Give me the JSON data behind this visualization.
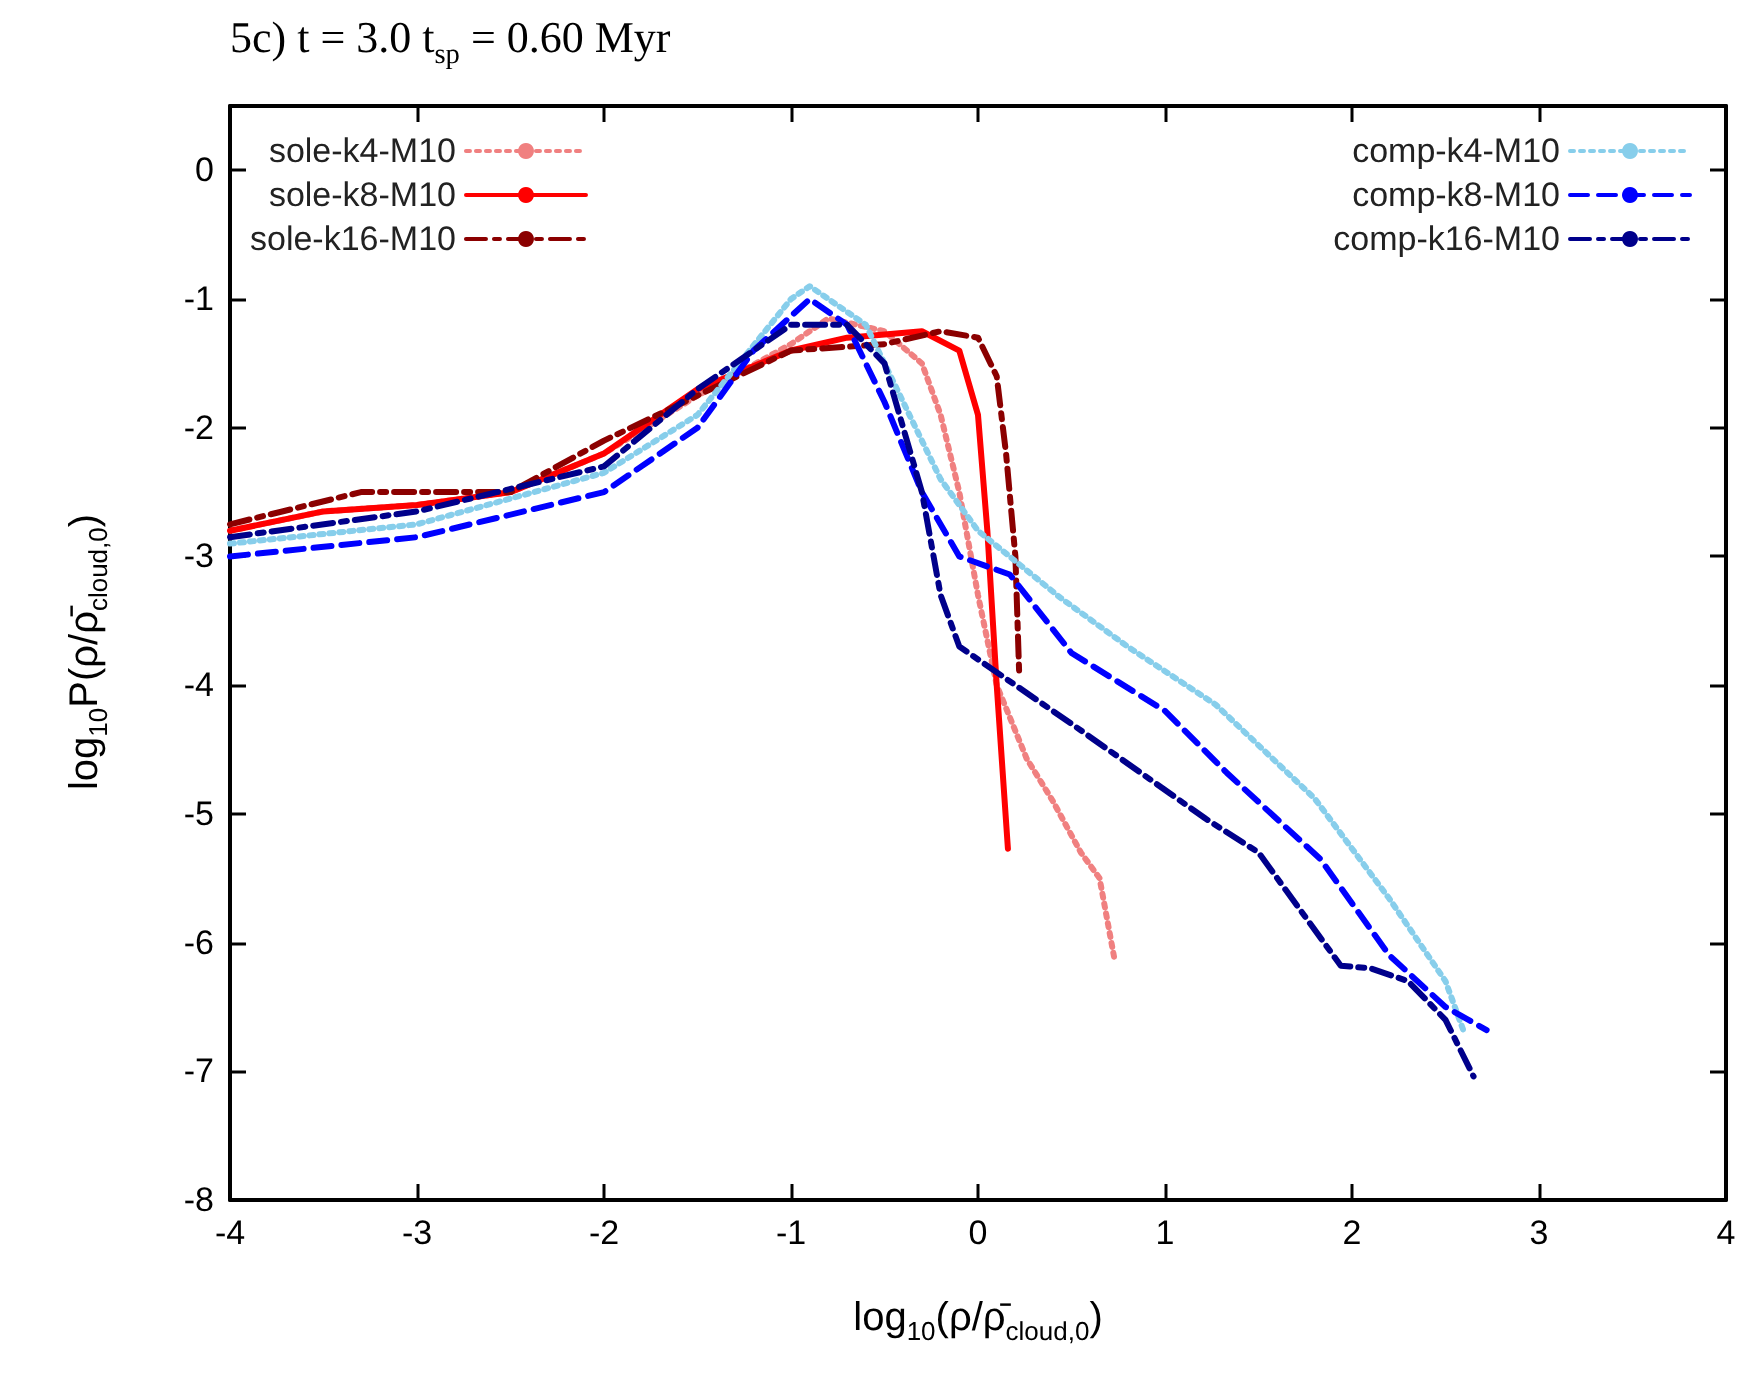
{
  "chart_data": {
    "type": "line",
    "title": "5c) t = 3.0 t$_{sp}$ = 0.60 Myr",
    "xlabel": "log$_{10}$(ρ/ρ̄$_{cloud,0}$)",
    "ylabel": "log$_{10}$P(ρ/ρ̄$_{cloud,0}$)",
    "xlim": [
      -4,
      4
    ],
    "xticks": [
      -4,
      -3,
      -2,
      -1,
      0,
      1,
      2,
      3,
      4
    ],
    "ylim": [
      -8,
      0.5
    ],
    "yticks": [
      -8,
      -7,
      -6,
      -5,
      -4,
      -3,
      -2,
      -1,
      0
    ],
    "grid": false,
    "legend": "top",
    "marker": "none",
    "series": [
      {
        "name": "sole-k4-M10",
        "color": "#f08080",
        "line_style": "dotted",
        "x": [
          -4,
          -3.5,
          -3,
          -2.5,
          -2,
          -1.5,
          -1,
          -0.8,
          -0.5,
          -0.3,
          -0.2,
          -0.1,
          0,
          0.1,
          0.26,
          0.4,
          0.55,
          0.65,
          0.73
        ],
        "values": [
          -2.8,
          -2.65,
          -2.6,
          -2.5,
          -2.2,
          -1.75,
          -1.35,
          -1.15,
          -1.25,
          -1.5,
          -1.9,
          -2.5,
          -3.3,
          -4.0,
          -4.57,
          -4.9,
          -5.3,
          -5.5,
          -6.13
        ]
      },
      {
        "name": "sole-k8-M10",
        "color": "#ff0000",
        "line_style": "solid",
        "x": [
          -4,
          -3.5,
          -3,
          -2.5,
          -2,
          -1.5,
          -1,
          -0.7,
          -0.3,
          -0.1,
          0,
          0.05,
          0.1,
          0.16
        ],
        "values": [
          -2.8,
          -2.65,
          -2.6,
          -2.5,
          -2.2,
          -1.7,
          -1.4,
          -1.3,
          -1.25,
          -1.4,
          -1.9,
          -2.8,
          -4.0,
          -5.27
        ]
      },
      {
        "name": "sole-k16-M10",
        "color": "#8b0000",
        "line_style": "dashdot",
        "x": [
          -4,
          -3.3,
          -2.5,
          -2,
          -1.5,
          -1,
          -0.5,
          -0.2,
          0,
          0.1,
          0.15,
          0.2,
          0.22
        ],
        "values": [
          -2.75,
          -2.5,
          -2.5,
          -2.1,
          -1.75,
          -1.4,
          -1.35,
          -1.25,
          -1.3,
          -1.6,
          -2.2,
          -3.0,
          -3.9
        ]
      },
      {
        "name": "comp-k4-M10",
        "color": "#87ceeb",
        "line_style": "dotted",
        "x": [
          -4,
          -3,
          -2,
          -1.5,
          -1,
          -0.9,
          -0.6,
          -0.4,
          -0.2,
          0,
          0.44,
          0.8,
          1.27,
          1.8,
          2.2,
          2.5,
          2.6
        ],
        "values": [
          -2.9,
          -2.75,
          -2.35,
          -1.9,
          -1.0,
          -0.9,
          -1.2,
          -1.8,
          -2.4,
          -2.8,
          -3.32,
          -3.7,
          -4.15,
          -4.88,
          -5.66,
          -6.3,
          -6.7
        ]
      },
      {
        "name": "comp-k8-M10",
        "color": "#0000ff",
        "line_style": "dashed",
        "x": [
          -4,
          -3,
          -2,
          -1.5,
          -1.2,
          -0.9,
          -0.7,
          -0.5,
          -0.3,
          -0.1,
          0.17,
          0.5,
          1,
          1.33,
          1.83,
          2.2,
          2.5,
          2.72
        ],
        "values": [
          -3.0,
          -2.85,
          -2.5,
          -2.0,
          -1.4,
          -1.0,
          -1.2,
          -1.8,
          -2.5,
          -3.0,
          -3.14,
          -3.75,
          -4.2,
          -4.68,
          -5.35,
          -6.1,
          -6.5,
          -6.68
        ]
      },
      {
        "name": "comp-k16-M10",
        "color": "#00008b",
        "line_style": "dashdot",
        "x": [
          -4,
          -3,
          -2,
          -1.5,
          -1,
          -0.7,
          -0.5,
          -0.3,
          -0.2,
          -0.1,
          0.22,
          0.5,
          1.22,
          1.5,
          1.94,
          2.1,
          2.3,
          2.5,
          2.65
        ],
        "values": [
          -2.85,
          -2.65,
          -2.3,
          -1.7,
          -1.2,
          -1.2,
          -1.5,
          -2.5,
          -3.3,
          -3.7,
          -4.02,
          -4.3,
          -5.04,
          -5.3,
          -6.18,
          -6.2,
          -6.3,
          -6.6,
          -7.04
        ]
      }
    ]
  }
}
